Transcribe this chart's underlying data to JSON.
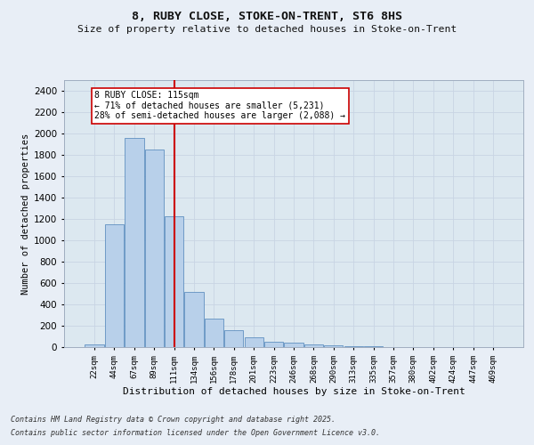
{
  "title_line1": "8, RUBY CLOSE, STOKE-ON-TRENT, ST6 8HS",
  "title_line2": "Size of property relative to detached houses in Stoke-on-Trent",
  "xlabel": "Distribution of detached houses by size in Stoke-on-Trent",
  "ylabel": "Number of detached properties",
  "categories": [
    "22sqm",
    "44sqm",
    "67sqm",
    "89sqm",
    "111sqm",
    "134sqm",
    "156sqm",
    "178sqm",
    "201sqm",
    "223sqm",
    "246sqm",
    "268sqm",
    "290sqm",
    "313sqm",
    "335sqm",
    "357sqm",
    "380sqm",
    "402sqm",
    "424sqm",
    "447sqm",
    "469sqm"
  ],
  "values": [
    28,
    1150,
    1960,
    1850,
    1225,
    515,
    270,
    155,
    90,
    48,
    42,
    25,
    18,
    10,
    5,
    3,
    3,
    2,
    2,
    2,
    2
  ],
  "bar_color": "#b8d0ea",
  "bar_edge_color": "#6090c0",
  "vline_x_idx": 4,
  "vline_color": "#cc0000",
  "annotation_text": "8 RUBY CLOSE: 115sqm\n← 71% of detached houses are smaller (5,231)\n28% of semi-detached houses are larger (2,088) →",
  "annotation_box_color": "#ffffff",
  "annotation_box_edge": "#cc0000",
  "ylim": [
    0,
    2500
  ],
  "yticks": [
    0,
    200,
    400,
    600,
    800,
    1000,
    1200,
    1400,
    1600,
    1800,
    2000,
    2200,
    2400
  ],
  "grid_color": "#c8d4e4",
  "background_color": "#dce8f0",
  "fig_background": "#e8eef6",
  "footnote_line1": "Contains HM Land Registry data © Crown copyright and database right 2025.",
  "footnote_line2": "Contains public sector information licensed under the Open Government Licence v3.0."
}
